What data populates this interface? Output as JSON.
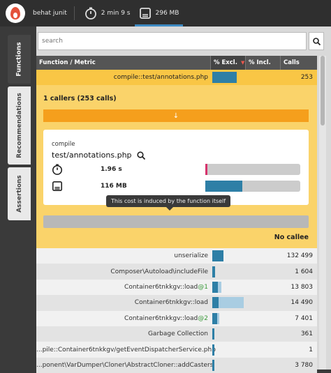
{
  "topbar": {
    "profile": "behat junit",
    "time": "2 min 9 s",
    "memory": "296 MB"
  },
  "sidetabs": [
    "Functions",
    "Recommendations",
    "Assertions"
  ],
  "search": {
    "placeholder": "search"
  },
  "table": {
    "headers": {
      "function": "Function / Metric",
      "excl": "% Excl.",
      "incl": "% Incl.",
      "calls": "Calls"
    },
    "selected": {
      "name": "compile::test/annotations.php",
      "calls": "253",
      "excl": 0.36
    }
  },
  "detail": {
    "callers_title": "1 callers (253 calls)",
    "callers_arrow": "↓",
    "namespace": "compile",
    "function": "test/annotations.php",
    "time": "1.96 s",
    "time_fill": 0.02,
    "memory": "116 MB",
    "memory_fill": 0.39,
    "tooltip": "This cost is induced by the function itself",
    "no_callee": "No callee"
  },
  "rows": [
    {
      "name": "unserialize",
      "suffix": "",
      "calls": "132 499",
      "excl": 0.17,
      "incl": 0.17
    },
    {
      "name": "Composer\\Autoload\\includeFile",
      "suffix": "",
      "calls": "1 604",
      "excl": 0.04,
      "incl": 0.04
    },
    {
      "name": "Container6tnkkgv::load",
      "suffix": "@1",
      "calls": "13 803",
      "excl": 0.08,
      "incl": 0.14
    },
    {
      "name": "Container6tnkkgv::load",
      "suffix": "",
      "calls": "14 490",
      "excl": 0.09,
      "incl": 0.47
    },
    {
      "name": "Container6tnkkgv::load",
      "suffix": "@2",
      "calls": "7 401",
      "excl": 0.07,
      "incl": 0.1
    },
    {
      "name": "Garbage Collection",
      "suffix": "",
      "calls": "361",
      "excl": 0.03,
      "incl": 0.03
    },
    {
      "name": "...pile::Container6tnkkgv/getEventDispatcherService.php",
      "suffix": "",
      "calls": "1",
      "excl": 0.03,
      "incl": 0.03
    },
    {
      "name": "...ponent\\VarDumper\\Cloner\\AbstractCloner::addCasters",
      "suffix": "",
      "calls": "3 780",
      "excl": 0.03,
      "incl": 0.03
    }
  ],
  "colors": {
    "accent": "#3d8ac2",
    "bar_excl": "#2e7fa6",
    "bar_incl": "#a9cde2",
    "selected_row": "#f9c645",
    "detail_bg": "#fad36a",
    "callers_bar": "#f59f1c",
    "time_fill": "#d6336c",
    "memory_fill": "#2e7fa6"
  }
}
